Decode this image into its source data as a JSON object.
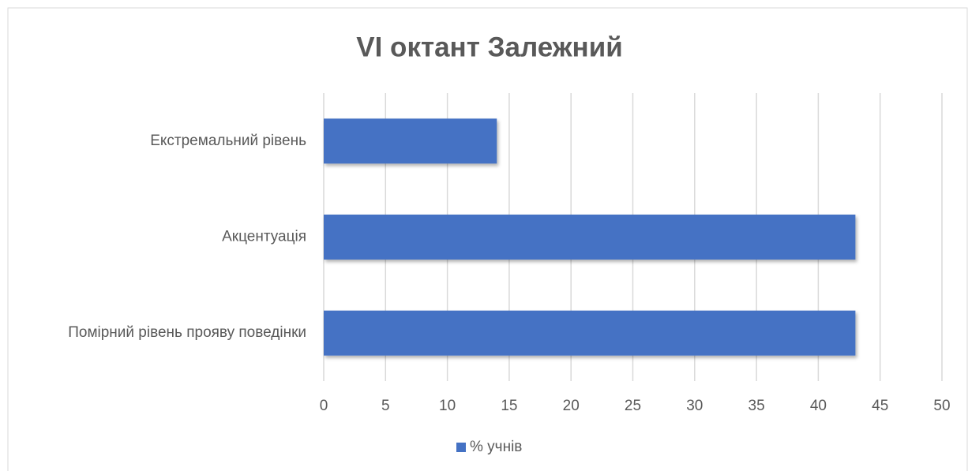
{
  "chart_data": {
    "type": "bar",
    "orientation": "horizontal",
    "title": "VI октант Залежний",
    "categories": [
      "Екстремальний рівень",
      "Акцентуація",
      "Помірний рівень прояву поведінки"
    ],
    "series": [
      {
        "name": "% учнів",
        "color": "#4472c4",
        "values": [
          14,
          43,
          43
        ]
      }
    ],
    "xlim": [
      0,
      50
    ],
    "xticks": [
      0,
      5,
      10,
      15,
      20,
      25,
      30,
      35,
      40,
      45,
      50
    ],
    "grid": true,
    "legend": "bottom"
  }
}
